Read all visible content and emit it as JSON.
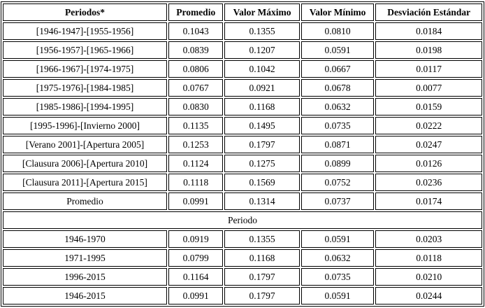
{
  "table": {
    "headers": [
      "Periodos*",
      "Promedio",
      "Valor Máximo",
      "Valor Mínimo",
      "Desviación Estándar"
    ],
    "rows": [
      [
        "[1946-1947]-[1955-1956]",
        "0.1043",
        "0.1355",
        "0.0810",
        "0.0184"
      ],
      [
        "[1956-1957]-[1965-1966]",
        "0.0839",
        "0.1207",
        "0.0591",
        "0.0198"
      ],
      [
        "[1966-1967]-[1974-1975]",
        "0.0806",
        "0.1042",
        "0.0667",
        "0.0117"
      ],
      [
        "[1975-1976]-[1984-1985]",
        "0.0767",
        "0.0921",
        "0.0678",
        "0.0077"
      ],
      [
        "[1985-1986]-[1994-1995]",
        "0.0830",
        "0.1168",
        "0.0632",
        "0.0159"
      ],
      [
        "[1995-1996]-[Invierno 2000]",
        "0.1135",
        "0.1495",
        "0.0735",
        "0.0222"
      ],
      [
        "[Verano 2001]-[Apertura 2005]",
        "0.1253",
        "0.1797",
        "0.0871",
        "0.0247"
      ],
      [
        "[Clausura 2006]-[Apertura 2010]",
        "0.1124",
        "0.1275",
        "0.0899",
        "0.0126"
      ],
      [
        "[Clausura 2011]-[Apertura 2015]",
        "0.1118",
        "0.1569",
        "0.0752",
        "0.0236"
      ],
      [
        "Promedio",
        "0.0991",
        "0.1314",
        "0.0737",
        "0.0174"
      ]
    ],
    "section_label": "Periodo",
    "rows2": [
      [
        "1946-1970",
        "0.0919",
        "0.1355",
        "0.0591",
        "0.0203"
      ],
      [
        "1971-1995",
        "0.0799",
        "0.1168",
        "0.0632",
        "0.0118"
      ],
      [
        "1996-2015",
        "0.1164",
        "0.1797",
        "0.0735",
        "0.0210"
      ],
      [
        "1946-2015",
        "0.0991",
        "0.1797",
        "0.0591",
        "0.0244"
      ]
    ]
  }
}
